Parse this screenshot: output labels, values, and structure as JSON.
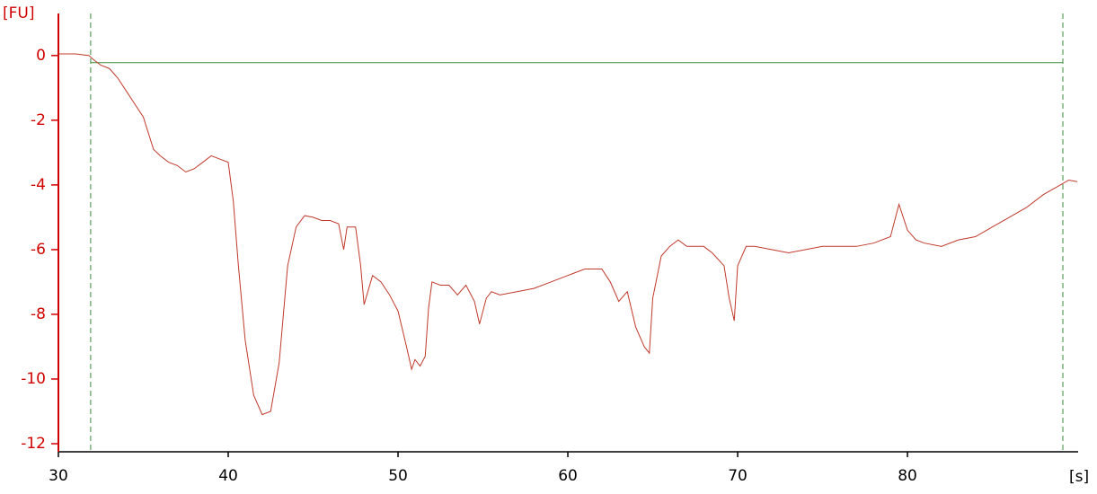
{
  "chart_data": {
    "type": "line",
    "ylabel": "[FU]",
    "xlabel": "[s]",
    "x": [
      30,
      31,
      31.8,
      32,
      32.5,
      33,
      33.5,
      34,
      34.5,
      35,
      35.3,
      35.6,
      36,
      36.5,
      37,
      37.5,
      38,
      38.5,
      39,
      39.5,
      40,
      40.3,
      40.6,
      41,
      41.5,
      42,
      42.5,
      43,
      43.5,
      44,
      44.5,
      45,
      45.5,
      46,
      46.5,
      46.8,
      47,
      47.5,
      47.8,
      48,
      48.5,
      49,
      49.5,
      50,
      50.5,
      50.8,
      51,
      51.3,
      51.6,
      51.8,
      52,
      52.5,
      53,
      53.5,
      54,
      54.5,
      54.8,
      55.2,
      55.5,
      56,
      57,
      58,
      59,
      60,
      61,
      62,
      62.5,
      63,
      63.5,
      64,
      64.5,
      64.8,
      65,
      65.5,
      66,
      66.5,
      67,
      68,
      68.5,
      69.2,
      69.5,
      69.8,
      70,
      70.5,
      71,
      72,
      73,
      74,
      75,
      76,
      77,
      78,
      79,
      79.5,
      80,
      80.5,
      81,
      82,
      83,
      84,
      85,
      86,
      87,
      88,
      89,
      89.5,
      90
    ],
    "values": [
      0.05,
      0.05,
      0,
      -0.1,
      -0.3,
      -0.4,
      -0.7,
      -1.1,
      -1.5,
      -1.9,
      -2.4,
      -2.9,
      -3.1,
      -3.3,
      -3.4,
      -3.6,
      -3.5,
      -3.3,
      -3.1,
      -3.2,
      -3.3,
      -4.5,
      -6.5,
      -8.8,
      -10.5,
      -11.1,
      -11,
      -9.5,
      -6.5,
      -5.3,
      -4.95,
      -5,
      -5.1,
      -5.1,
      -5.2,
      -6,
      -5.3,
      -5.3,
      -6.5,
      -7.7,
      -6.8,
      -7,
      -7.4,
      -7.9,
      -9,
      -9.7,
      -9.4,
      -9.6,
      -9.3,
      -7.8,
      -7,
      -7.1,
      -7.1,
      -7.4,
      -7.1,
      -7.6,
      -8.3,
      -7.5,
      -7.3,
      -7.4,
      -7.3,
      -7.2,
      -7,
      -6.8,
      -6.6,
      -6.6,
      -7,
      -7.6,
      -7.3,
      -8.4,
      -9,
      -9.2,
      -7.5,
      -6.2,
      -5.9,
      -5.7,
      -5.9,
      -5.9,
      -6.1,
      -6.5,
      -7.5,
      -8.2,
      -6.5,
      -5.9,
      -5.9,
      -6,
      -6.1,
      -6,
      -5.9,
      -5.9,
      -5.9,
      -5.8,
      -5.6,
      -4.6,
      -5.4,
      -5.7,
      -5.8,
      -5.9,
      -5.7,
      -5.6,
      -5.3,
      -5,
      -4.7,
      -4.3,
      -4,
      -3.85,
      -3.9
    ],
    "color": "#c0392b",
    "xlim": [
      30,
      90.05
    ],
    "ylim": [
      -12.25,
      1.3
    ],
    "xticks": [
      30,
      40,
      50,
      60,
      70,
      80
    ],
    "yticks": [
      0,
      -2,
      -4,
      -6,
      -8,
      -10,
      -12
    ],
    "vlines": [
      31.9,
      89.15
    ],
    "hline": -0.22,
    "marker_color": "#3a8a3a",
    "y_axis_color": "#d00000"
  }
}
